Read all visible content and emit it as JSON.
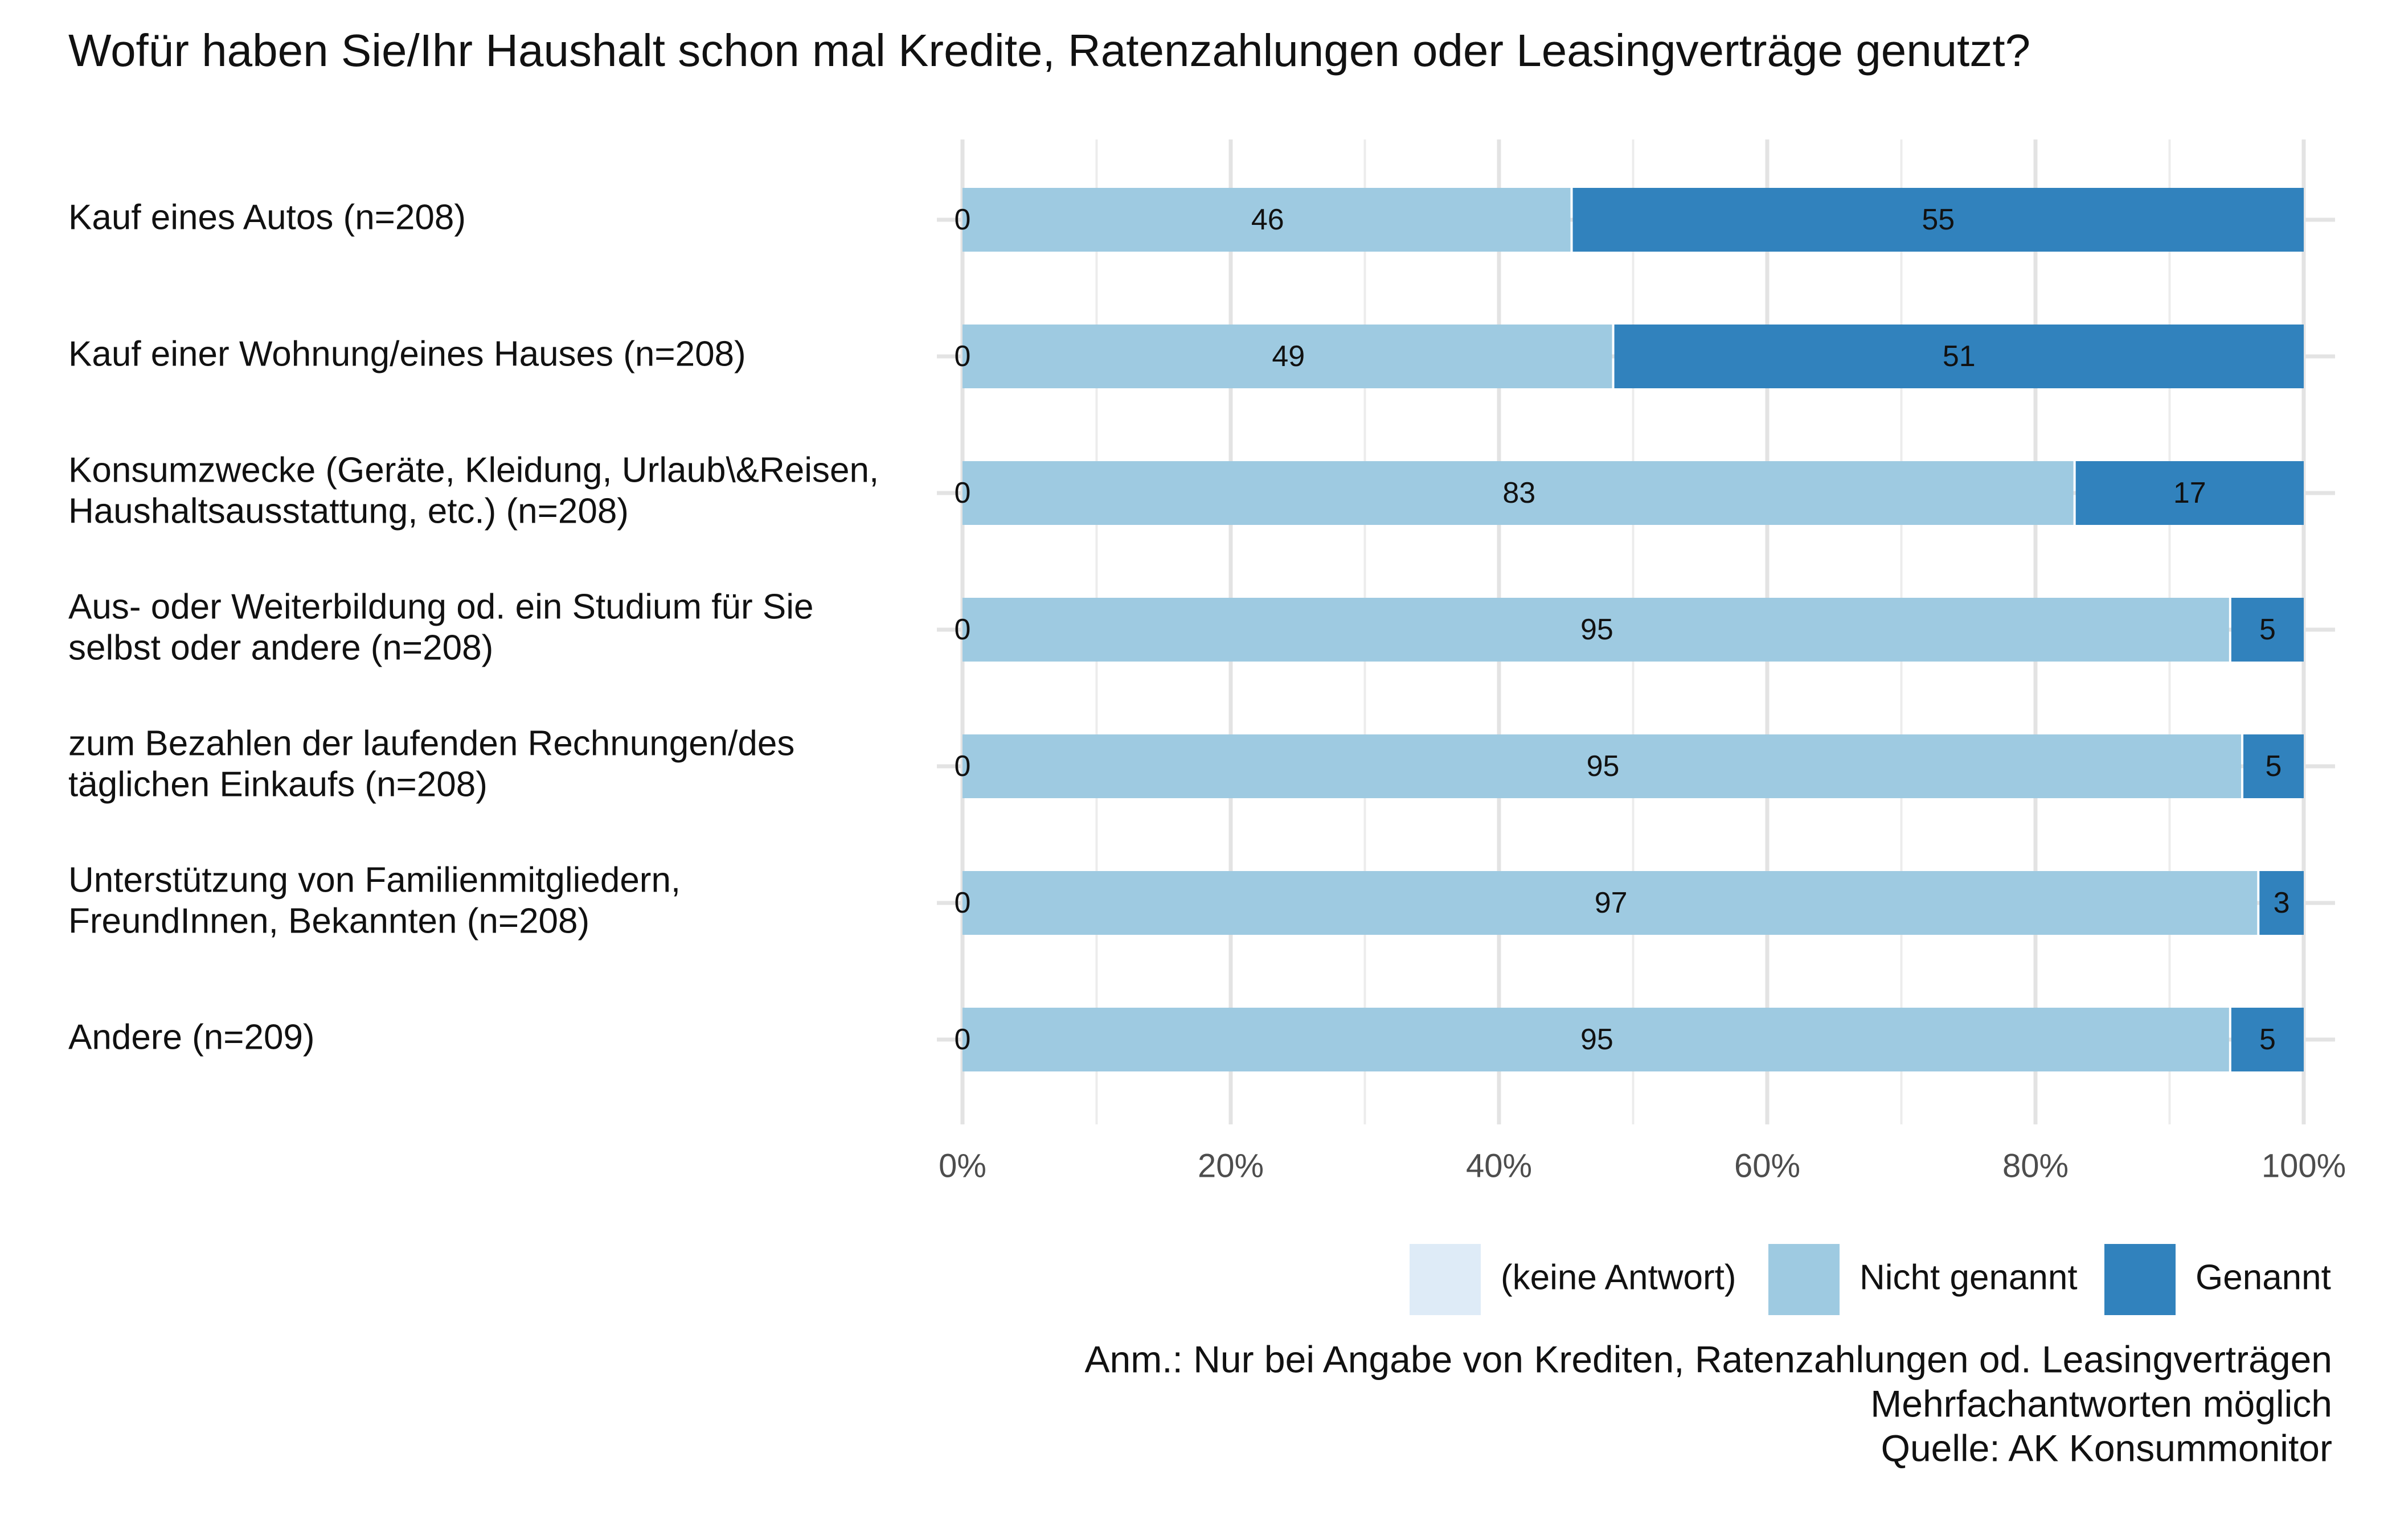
{
  "chart_data": {
    "type": "bar",
    "orientation": "horizontal",
    "stacked": true,
    "percent_scale": true,
    "title": "Wofür haben Sie/Ihr Haushalt schon mal Kredite, Ratenzahlungen oder Leasingverträge genutzt?",
    "categories": [
      [
        "Kauf eines Autos (n=208)"
      ],
      [
        "Kauf einer Wohnung/eines Hauses (n=208)"
      ],
      [
        "Konsumzwecke (Geräte, Kleidung, Urlaub\\&Reisen,",
        "Haushaltsausstattung, etc.) (n=208)"
      ],
      [
        "Aus- oder Weiterbildung od. ein Studium für Sie",
        "selbst oder andere (n=208)"
      ],
      [
        "zum Bezahlen der laufenden Rechnungen/des",
        "täglichen Einkaufs (n=208)"
      ],
      [
        "Unterstützung von Familienmitgliedern,",
        "FreundInnen, Bekannten (n=208)"
      ],
      [
        "Andere (n=209)"
      ]
    ],
    "series": [
      {
        "name": "(keine Antwort)",
        "color": "#deebf7",
        "values": [
          0,
          0,
          0,
          0,
          0,
          0,
          0
        ]
      },
      {
        "name": "Nicht genannt",
        "color": "#9ecae1",
        "values": [
          45.5,
          48.6,
          83.0,
          94.6,
          95.5,
          96.7,
          94.6
        ],
        "labels": [
          "46",
          "49",
          "83",
          "95",
          "95",
          "97",
          "95"
        ]
      },
      {
        "name": "Genannt",
        "color": "#3182bd",
        "values": [
          54.5,
          51.4,
          17.0,
          5.4,
          4.5,
          3.3,
          5.4
        ],
        "labels": [
          "55",
          "51",
          "17",
          "5",
          "5",
          "3",
          "5"
        ]
      }
    ],
    "zero_labels": [
      "0",
      "0",
      "0",
      "0",
      "0",
      "0",
      "0"
    ],
    "xlim": [
      0,
      100
    ],
    "xticks": [
      0,
      20,
      40,
      60,
      80,
      100
    ],
    "xtick_labels": [
      "0%",
      "20%",
      "40%",
      "60%",
      "80%",
      "100%"
    ],
    "xlabel": "",
    "ylabel": "",
    "grid": true,
    "legend_position": "bottom-right",
    "notes": [
      "Anm.: Nur bei Angabe von Krediten, Ratenzahlungen od. Leasingverträgen",
      "Mehrfachantworten möglich",
      "Quelle: AK Konsummonitor"
    ]
  }
}
